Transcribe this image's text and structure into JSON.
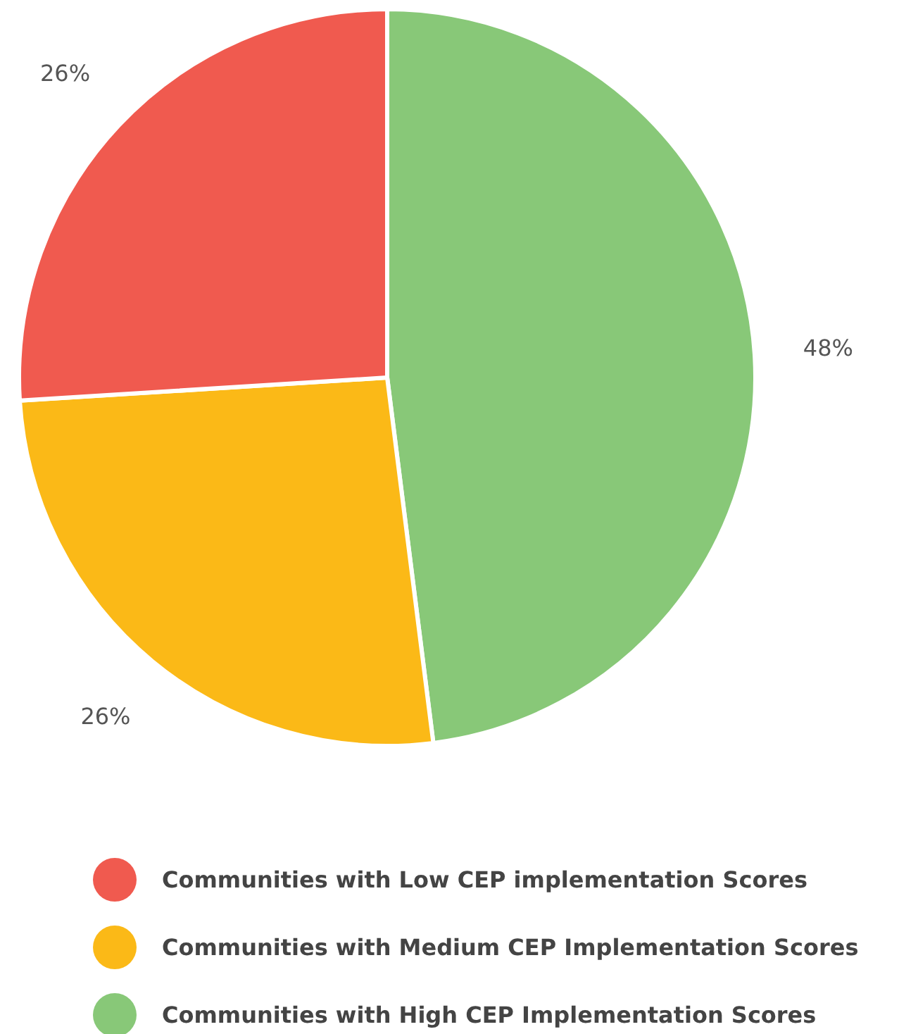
{
  "chart_data": {
    "type": "pie",
    "categories": [
      "Communities with Low CEP implementation Scores",
      "Communities with Medium CEP Implementation Scores",
      "Communities with High CEP Implementation Scores"
    ],
    "values": [
      26,
      26,
      48
    ],
    "colors": [
      "#f05a4f",
      "#fbb917",
      "#88c878"
    ],
    "value_labels": [
      "26%",
      "26%",
      "48%"
    ],
    "legend": "bottom"
  }
}
